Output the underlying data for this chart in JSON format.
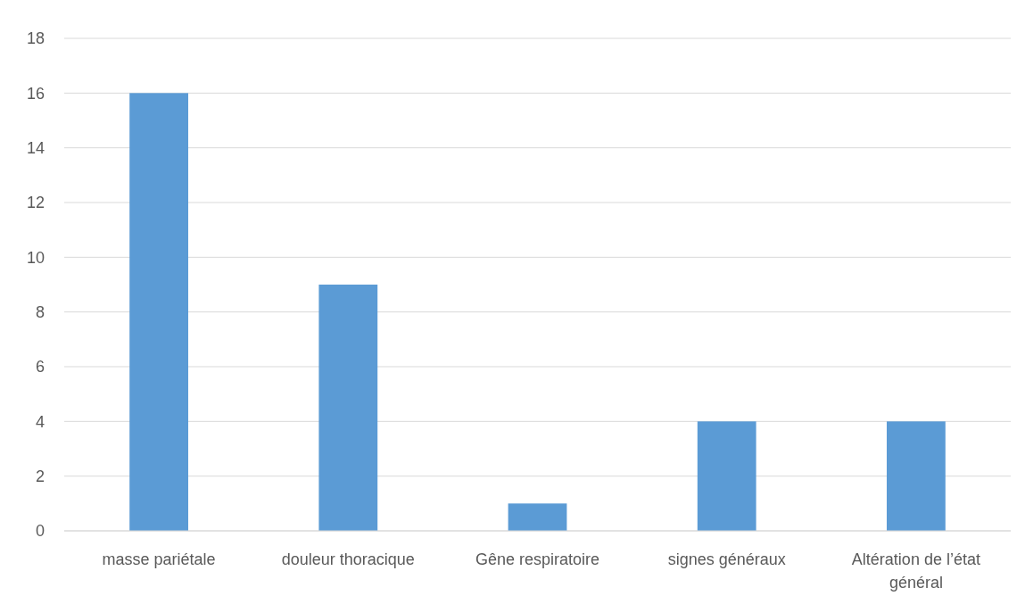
{
  "chart_data": {
    "type": "bar",
    "categories": [
      "masse pariétale",
      "douleur thoracique",
      "Gêne respiratoire",
      "signes généraux",
      "Altération de l’état général"
    ],
    "values": [
      16,
      9,
      1,
      4,
      4
    ],
    "color": "#5b9bd5",
    "ylim": [
      0,
      18
    ],
    "yticks": [
      0,
      2,
      4,
      6,
      8,
      10,
      12,
      14,
      16,
      18
    ],
    "grid": "y"
  }
}
